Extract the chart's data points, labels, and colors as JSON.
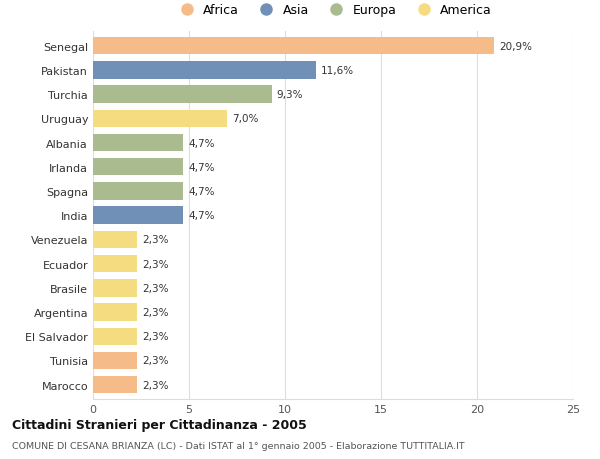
{
  "categories": [
    "Senegal",
    "Pakistan",
    "Turchia",
    "Uruguay",
    "Albania",
    "Irlanda",
    "Spagna",
    "India",
    "Venezuela",
    "Ecuador",
    "Brasile",
    "Argentina",
    "El Salvador",
    "Tunisia",
    "Marocco"
  ],
  "values": [
    20.9,
    11.6,
    9.3,
    7.0,
    4.7,
    4.7,
    4.7,
    4.7,
    2.3,
    2.3,
    2.3,
    2.3,
    2.3,
    2.3,
    2.3
  ],
  "labels": [
    "20,9%",
    "11,6%",
    "9,3%",
    "7,0%",
    "4,7%",
    "4,7%",
    "4,7%",
    "4,7%",
    "2,3%",
    "2,3%",
    "2,3%",
    "2,3%",
    "2,3%",
    "2,3%",
    "2,3%"
  ],
  "colors": [
    "#F5BC8A",
    "#7090B8",
    "#AABB90",
    "#F5DC80",
    "#AABB90",
    "#AABB90",
    "#AABB90",
    "#7090B8",
    "#F5DC80",
    "#F5DC80",
    "#F5DC80",
    "#F5DC80",
    "#F5DC80",
    "#F5BC8A",
    "#F5BC8A"
  ],
  "legend_labels": [
    "Africa",
    "Asia",
    "Europa",
    "America"
  ],
  "legend_colors": [
    "#F5BC8A",
    "#7090B8",
    "#AABB90",
    "#F5DC80"
  ],
  "title": "Cittadini Stranieri per Cittadinanza - 2005",
  "subtitle": "COMUNE DI CESANA BRIANZA (LC) - Dati ISTAT al 1° gennaio 2005 - Elaborazione TUTTITALIA.IT",
  "xlim": [
    0,
    25
  ],
  "xticks": [
    0,
    5,
    10,
    15,
    20,
    25
  ],
  "background_color": "#ffffff",
  "grid_color": "#dddddd"
}
